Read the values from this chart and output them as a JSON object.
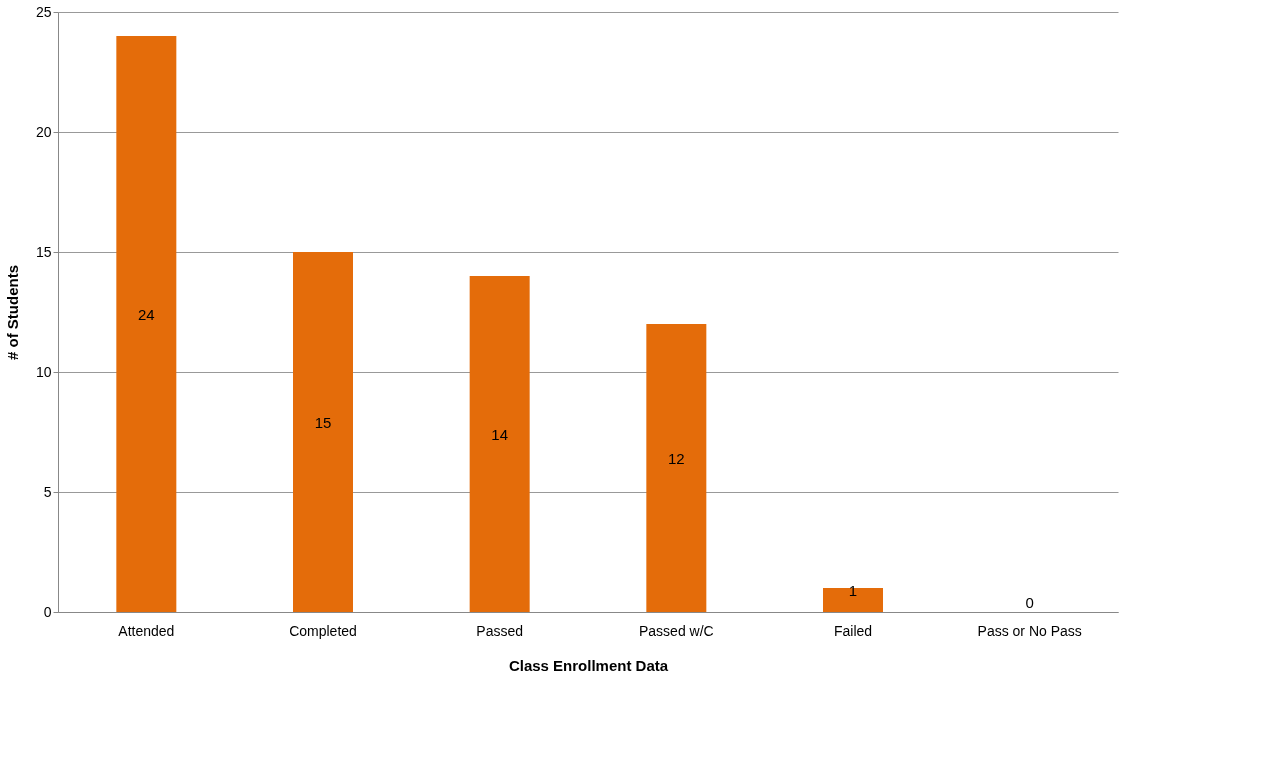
{
  "chart_data": {
    "type": "bar",
    "xlabel": "Class Enrollment Data",
    "ylabel": "# of Students",
    "categories": [
      "Attended",
      "Completed",
      "Passed",
      "Passed w/C",
      "Failed",
      "Pass or No Pass"
    ],
    "values": [
      24,
      15,
      14,
      12,
      1,
      0
    ],
    "color": "#e46c0a",
    "ylim": [
      0,
      25
    ],
    "yticks": [
      0,
      5,
      10,
      15,
      20,
      25
    ],
    "grid": "y",
    "data_labels": true
  }
}
